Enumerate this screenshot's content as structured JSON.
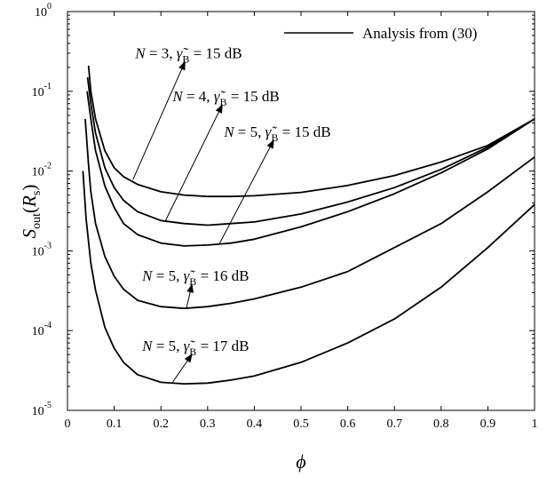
{
  "chart_data": {
    "type": "line",
    "title": "",
    "xlabel": "ϕ",
    "ylabel": {
      "base": "S",
      "sub": "out",
      "arg_base": "R",
      "arg_sub": "s"
    },
    "xlim": [
      0,
      1
    ],
    "ylim": [
      1e-05,
      1
    ],
    "yscale": "log",
    "grid": false,
    "xticks": [
      0,
      0.1,
      0.2,
      0.3,
      0.4,
      0.5,
      0.6,
      0.7,
      0.8,
      0.9,
      1
    ],
    "xtick_labels": [
      "0",
      "0.1",
      "0.2",
      "0.3",
      "0.4",
      "0.5",
      "0.6",
      "0.7",
      "0.8",
      "0.9",
      "1"
    ],
    "ytick_exponents": [
      -5,
      -4,
      -3,
      -2,
      -1,
      0
    ],
    "ytick_base": "10",
    "legend": {
      "position": "top-right",
      "entries": [
        "Analysis from (30)"
      ]
    },
    "series": [
      {
        "N": "3",
        "gamma": "15 dB",
        "color": "#000000",
        "x": [
          0.045,
          0.05,
          0.06,
          0.08,
          0.1,
          0.12,
          0.15,
          0.2,
          0.25,
          0.3,
          0.35,
          0.4,
          0.5,
          0.6,
          0.7,
          0.8,
          0.9,
          1.0
        ],
        "y": [
          0.21,
          0.1,
          0.045,
          0.018,
          0.011,
          0.0085,
          0.0068,
          0.0055,
          0.005,
          0.0048,
          0.0048,
          0.0049,
          0.0054,
          0.0066,
          0.0088,
          0.013,
          0.021,
          0.045
        ]
      },
      {
        "N": "4",
        "gamma": "15 dB",
        "color": "#000000",
        "x": [
          0.043,
          0.05,
          0.06,
          0.08,
          0.1,
          0.12,
          0.15,
          0.2,
          0.25,
          0.3,
          0.35,
          0.4,
          0.5,
          0.6,
          0.7,
          0.8,
          0.9,
          1.0
        ],
        "y": [
          0.15,
          0.07,
          0.03,
          0.011,
          0.0062,
          0.0043,
          0.0031,
          0.0024,
          0.0022,
          0.0021,
          0.0022,
          0.0023,
          0.0029,
          0.0041,
          0.0062,
          0.0105,
          0.02,
          0.045
        ]
      },
      {
        "N": "5",
        "gamma": "15 dB",
        "color": "#000000",
        "x": [
          0.042,
          0.05,
          0.06,
          0.08,
          0.1,
          0.12,
          0.15,
          0.2,
          0.25,
          0.3,
          0.35,
          0.4,
          0.5,
          0.6,
          0.7,
          0.8,
          0.9,
          1.0
        ],
        "y": [
          0.1,
          0.045,
          0.018,
          0.0065,
          0.0035,
          0.0022,
          0.0016,
          0.00125,
          0.00115,
          0.00118,
          0.00125,
          0.0014,
          0.002,
          0.0031,
          0.0052,
          0.0095,
          0.019,
          0.045
        ]
      },
      {
        "N": "5",
        "gamma": "16 dB",
        "color": "#000000",
        "x": [
          0.038,
          0.045,
          0.05,
          0.06,
          0.08,
          0.1,
          0.12,
          0.15,
          0.2,
          0.25,
          0.3,
          0.35,
          0.4,
          0.5,
          0.6,
          0.7,
          0.8,
          0.9,
          1.0
        ],
        "y": [
          0.045,
          0.012,
          0.0055,
          0.0022,
          0.00085,
          0.00048,
          0.00033,
          0.00024,
          0.0002,
          0.00019,
          0.0002,
          0.00022,
          0.00025,
          0.00035,
          0.00055,
          0.0011,
          0.0022,
          0.0055,
          0.015
        ]
      },
      {
        "N": "5",
        "gamma": "17 dB",
        "color": "#000000",
        "x": [
          0.033,
          0.04,
          0.05,
          0.06,
          0.08,
          0.1,
          0.12,
          0.15,
          0.2,
          0.25,
          0.3,
          0.35,
          0.4,
          0.5,
          0.6,
          0.7,
          0.8,
          0.9,
          1.0
        ],
        "y": [
          0.01,
          0.0025,
          0.0007,
          0.00032,
          0.00011,
          6e-05,
          4e-05,
          2.8e-05,
          2.25e-05,
          2.15e-05,
          2.2e-05,
          2.4e-05,
          2.7e-05,
          4e-05,
          7e-05,
          0.00014,
          0.00035,
          0.0011,
          0.0038
        ]
      }
    ],
    "annotations": [
      {
        "n": "N",
        "eq1": " = 3, ",
        "g": "γ̃",
        "gsub": "B",
        "eq2": " = 15 dB",
        "label_x": 0.145,
        "label_y": 0.26,
        "point_x": 0.14,
        "point_y": 0.0078
      },
      {
        "n": "N",
        "eq1": " = 4, ",
        "g": "γ̃",
        "gsub": "B",
        "eq2": " = 15 dB",
        "label_x": 0.225,
        "label_y": 0.075,
        "point_x": 0.21,
        "point_y": 0.0024
      },
      {
        "n": "N",
        "eq1": " = 5, ",
        "g": "γ̃",
        "gsub": "B",
        "eq2": " = 15 dB",
        "label_x": 0.335,
        "label_y": 0.027,
        "point_x": 0.325,
        "point_y": 0.00122
      },
      {
        "n": "N",
        "eq1": " = 5, ",
        "g": "γ̃",
        "gsub": "B",
        "eq2": " = 16 dB",
        "label_x": 0.16,
        "label_y": 0.00042,
        "point_x": 0.255,
        "point_y": 0.000195
      },
      {
        "n": "N",
        "eq1": " = 5, ",
        "g": "γ̃",
        "gsub": "B",
        "eq2": " = 17 dB",
        "label_x": 0.16,
        "label_y": 5.6e-05,
        "point_x": 0.225,
        "point_y": 2.25e-05
      }
    ]
  }
}
